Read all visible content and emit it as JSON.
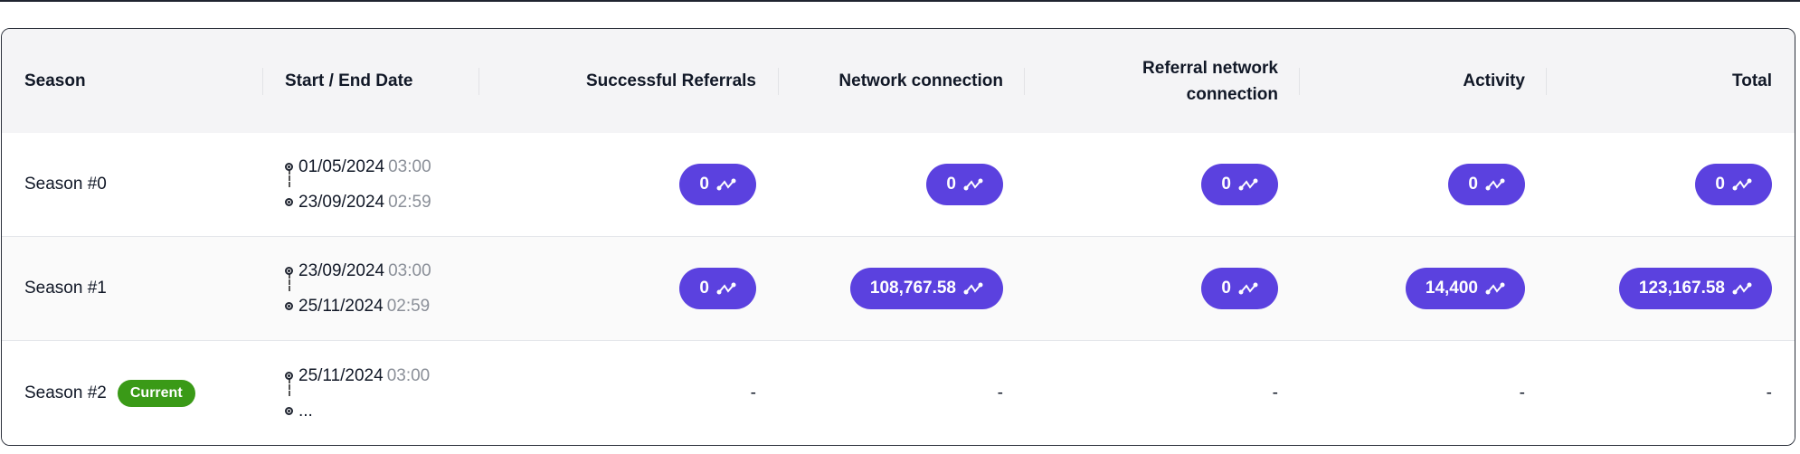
{
  "accent_color": "#5b41df",
  "current_badge_color": "#3a9a17",
  "headers": [
    "Season",
    "Start / End Date",
    "Successful Referrals",
    "Network connection",
    "Referral network connection",
    "Activity",
    "Total"
  ],
  "rows": [
    {
      "season": "Season #0",
      "badge": "",
      "start_date": "01/05/2024",
      "start_time": "03:00",
      "end_date": "23/09/2024",
      "end_time": "02:59",
      "values": [
        "0",
        "0",
        "0",
        "0",
        "0"
      ]
    },
    {
      "season": "Season #1",
      "badge": "",
      "start_date": "23/09/2024",
      "start_time": "03:00",
      "end_date": "25/11/2024",
      "end_time": "02:59",
      "values": [
        "0",
        "108,767.58",
        "0",
        "14,400",
        "123,167.58"
      ]
    },
    {
      "season": "Season #2",
      "badge": "Current",
      "start_date": "25/11/2024",
      "start_time": "03:00",
      "end_date": "...",
      "end_time": "",
      "values": [
        "-",
        "-",
        "-",
        "-",
        "-"
      ]
    }
  ],
  "value_icon": "network-points-icon"
}
